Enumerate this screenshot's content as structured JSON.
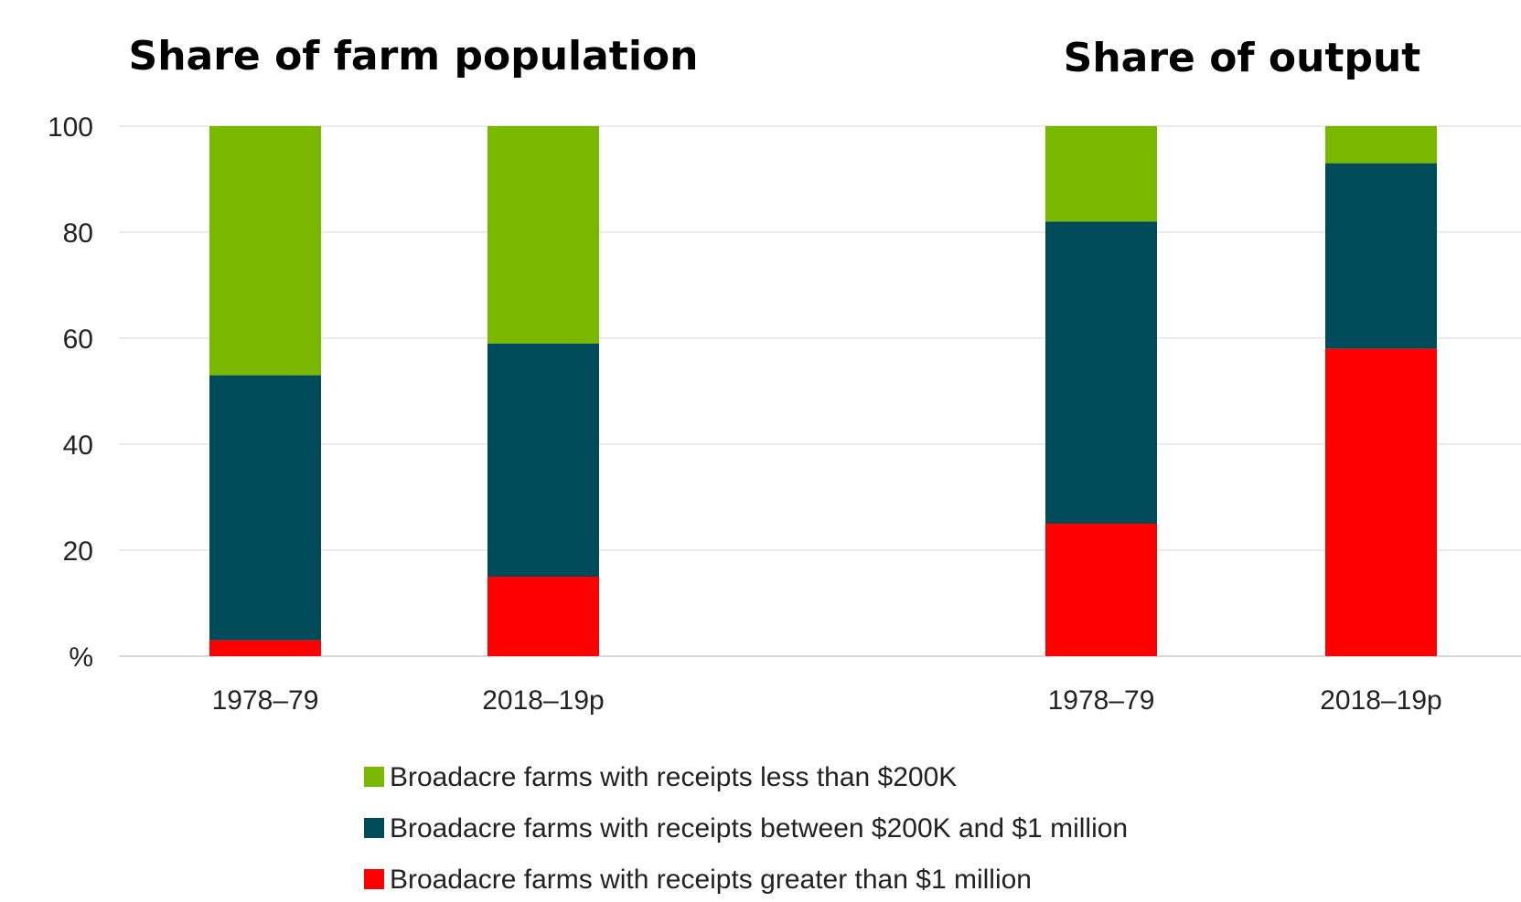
{
  "chart_data": {
    "type": "bar",
    "stacked": true,
    "y_unit_label": "%",
    "ylim": [
      0,
      100
    ],
    "yticks": [
      20,
      40,
      60,
      80,
      100
    ],
    "grid": true,
    "legend_position": "bottom",
    "colors": {
      "less_200k": "#7AB800",
      "between": "#004B5A",
      "greater_1m": "#FF0000"
    },
    "legend": [
      {
        "key": "less_200k",
        "label": "Broadacre farms with receipts less than $200K"
      },
      {
        "key": "between",
        "label": "Broadacre farms with receipts between $200K and $1 million"
      },
      {
        "key": "greater_1m",
        "label": "Broadacre farms with receipts greater than $1 million"
      }
    ],
    "panels": [
      {
        "title": "Share of farm population",
        "categories": [
          "1978–79",
          "2018–19p"
        ],
        "series": [
          {
            "key": "greater_1m",
            "values": [
              3,
              15
            ]
          },
          {
            "key": "between",
            "values": [
              50,
              44
            ]
          },
          {
            "key": "less_200k",
            "values": [
              47,
              41
            ]
          }
        ]
      },
      {
        "title": "Share of output",
        "categories": [
          "1978–79",
          "2018–19p"
        ],
        "series": [
          {
            "key": "greater_1m",
            "values": [
              25,
              58
            ]
          },
          {
            "key": "between",
            "values": [
              57,
              35
            ]
          },
          {
            "key": "less_200k",
            "values": [
              18,
              7
            ]
          }
        ]
      }
    ]
  }
}
